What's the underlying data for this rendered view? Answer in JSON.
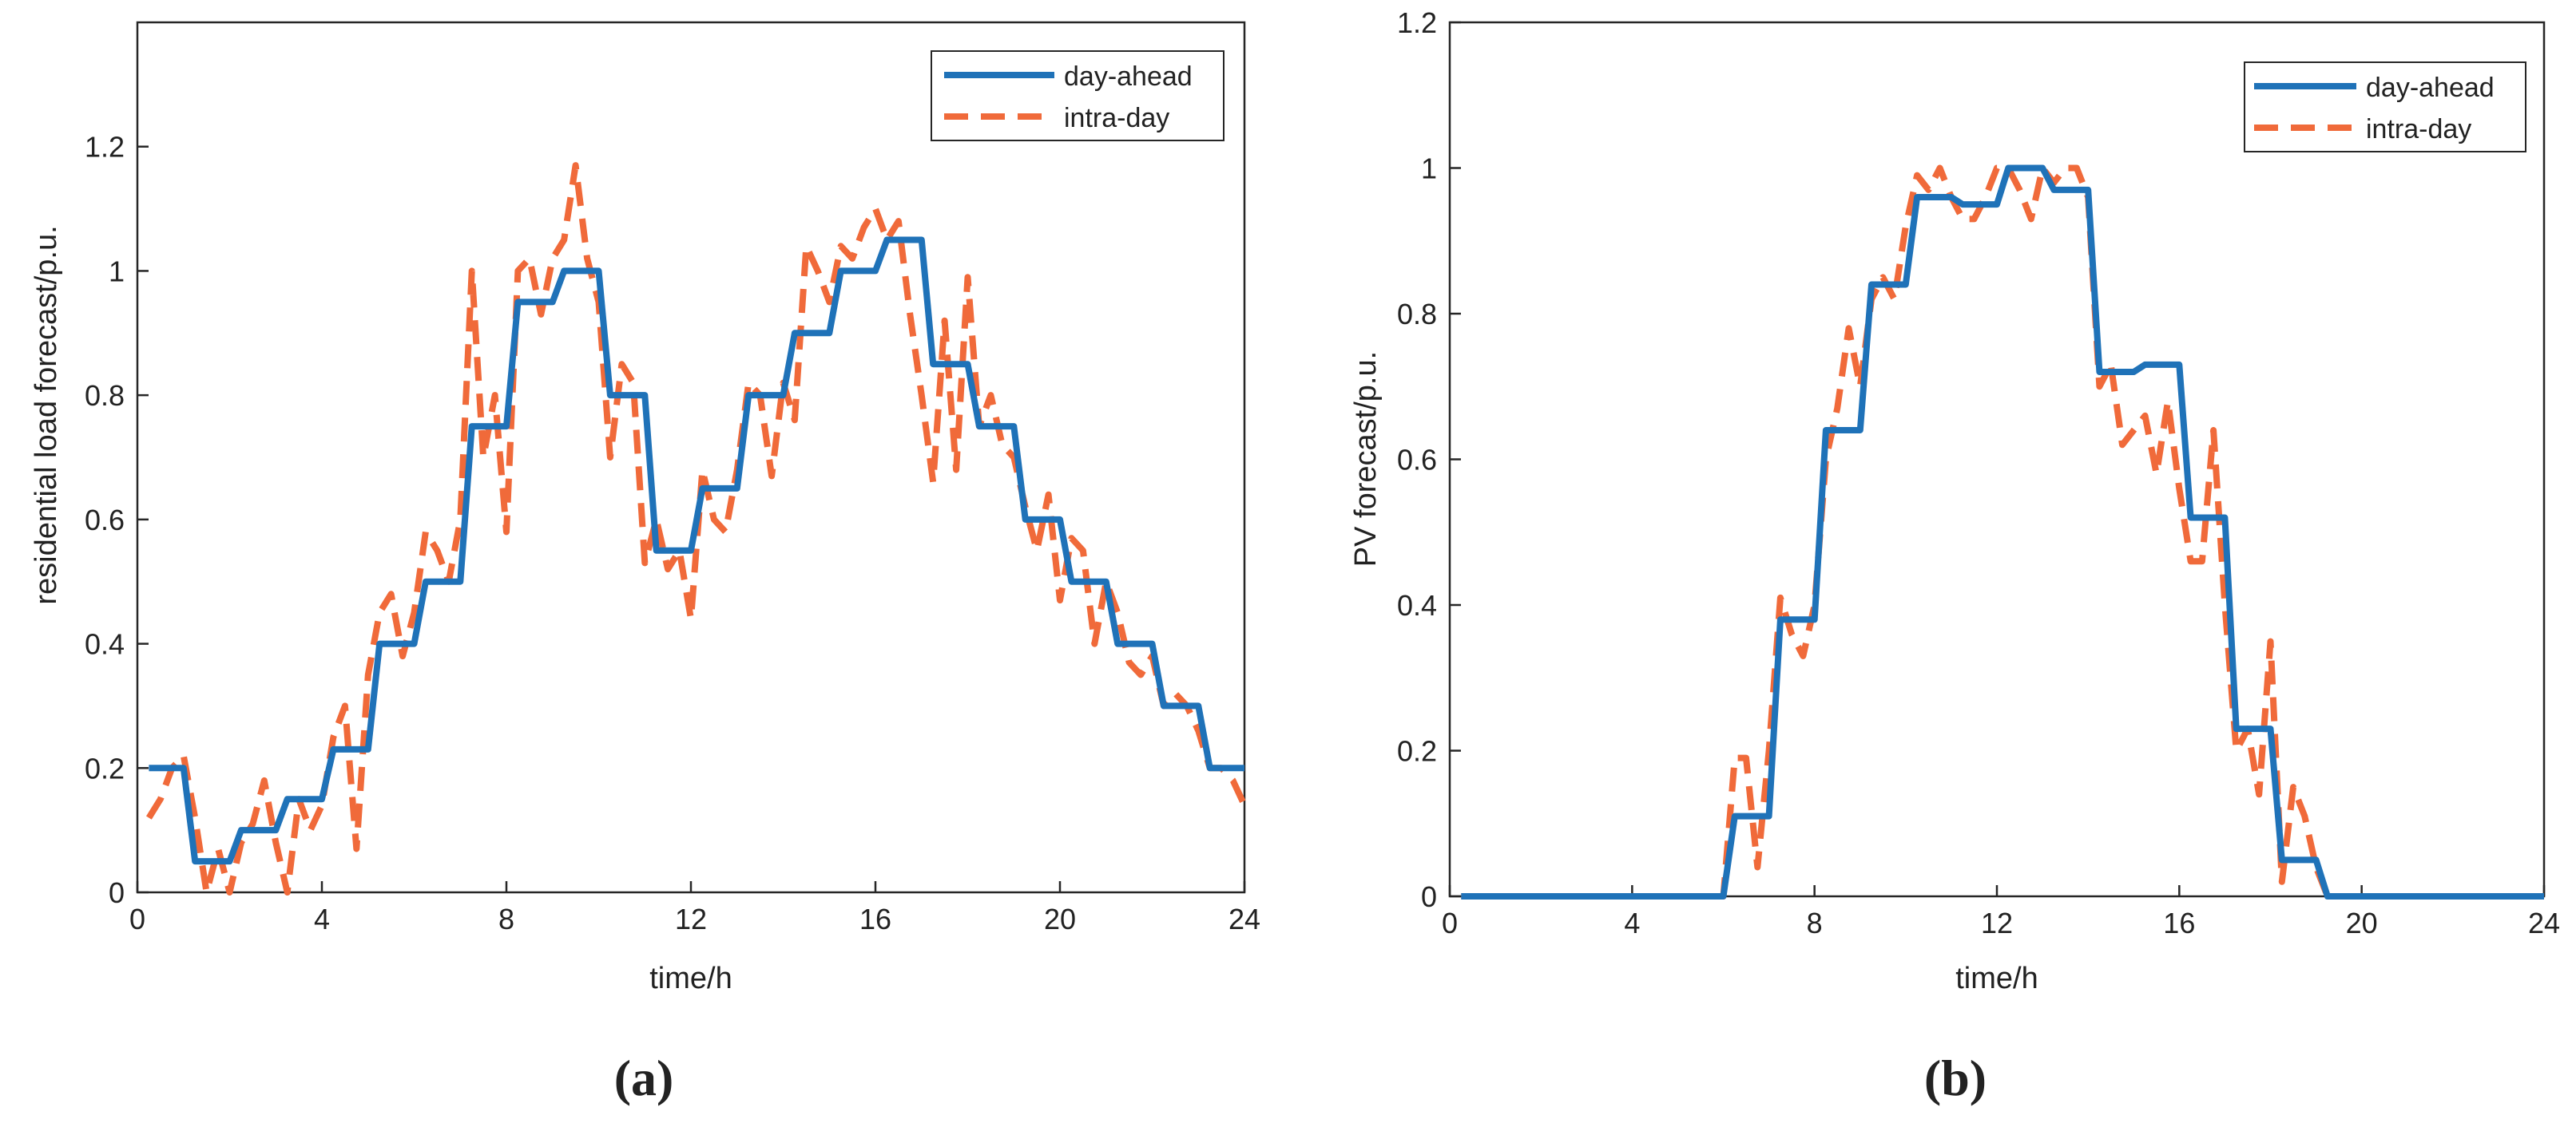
{
  "colors": {
    "day_ahead": "#1f72b8",
    "intra_day": "#f06a3a",
    "axis": "#262626",
    "text": "#222222"
  },
  "chart_data": [
    {
      "type": "line",
      "panel_label": "(a)",
      "xlabel": "time/h",
      "ylabel": "residential load forecast/p.u.",
      "xlim": [
        0,
        24
      ],
      "ylim": [
        0,
        1.4
      ],
      "xticks": [
        0,
        4,
        8,
        12,
        16,
        20,
        24
      ],
      "yticks": [
        0,
        0.2,
        0.4,
        0.6,
        0.8,
        1,
        1.2
      ],
      "ytick_labels": [
        "0",
        "0.2",
        "0.4",
        "0.6",
        "0.8",
        "1",
        "1.2"
      ],
      "grid": false,
      "legend": "top-right",
      "series": [
        {
          "name": "day-ahead",
          "style": "solid",
          "points": [
            [
              0.25,
              0.2
            ],
            [
              1,
              0.2
            ],
            [
              1.25,
              0.05
            ],
            [
              2,
              0.05
            ],
            [
              2.25,
              0.1
            ],
            [
              3,
              0.1
            ],
            [
              3.25,
              0.15
            ],
            [
              4,
              0.15
            ],
            [
              4.25,
              0.23
            ],
            [
              5,
              0.23
            ],
            [
              5.25,
              0.4
            ],
            [
              6,
              0.4
            ],
            [
              6.25,
              0.5
            ],
            [
              7,
              0.5
            ],
            [
              7.25,
              0.75
            ],
            [
              8,
              0.75
            ],
            [
              8.25,
              0.95
            ],
            [
              9,
              0.95
            ],
            [
              9.25,
              1
            ],
            [
              10,
              1
            ],
            [
              10.25,
              0.8
            ],
            [
              11,
              0.8
            ],
            [
              11.25,
              0.55
            ],
            [
              12,
              0.55
            ],
            [
              12.25,
              0.65
            ],
            [
              13,
              0.65
            ],
            [
              13.25,
              0.8
            ],
            [
              14,
              0.8
            ],
            [
              14.25,
              0.9
            ],
            [
              15,
              0.9
            ],
            [
              15.25,
              1
            ],
            [
              16,
              1
            ],
            [
              16.25,
              1.05
            ],
            [
              17,
              1.05
            ],
            [
              17.25,
              0.85
            ],
            [
              18,
              0.85
            ],
            [
              18.25,
              0.75
            ],
            [
              19,
              0.75
            ],
            [
              19.25,
              0.6
            ],
            [
              20,
              0.6
            ],
            [
              20.25,
              0.5
            ],
            [
              21,
              0.5
            ],
            [
              21.25,
              0.4
            ],
            [
              22,
              0.4
            ],
            [
              22.25,
              0.3
            ],
            [
              23,
              0.3
            ],
            [
              23.25,
              0.2
            ],
            [
              24,
              0.2
            ]
          ]
        },
        {
          "name": "intra-day",
          "style": "dashed",
          "points": [
            [
              0.25,
              0.12
            ],
            [
              0.5,
              0.15
            ],
            [
              0.75,
              0.2
            ],
            [
              1,
              0.22
            ],
            [
              1.25,
              0.12
            ],
            [
              1.5,
              0
            ],
            [
              1.75,
              0.07
            ],
            [
              2,
              0
            ],
            [
              2.25,
              0.08
            ],
            [
              2.5,
              0.11
            ],
            [
              2.75,
              0.18
            ],
            [
              3,
              0.08
            ],
            [
              3.25,
              0
            ],
            [
              3.5,
              0.15
            ],
            [
              3.75,
              0.1
            ],
            [
              4,
              0.14
            ],
            [
              4.25,
              0.25
            ],
            [
              4.5,
              0.3
            ],
            [
              4.75,
              0.07
            ],
            [
              5,
              0.35
            ],
            [
              5.25,
              0.45
            ],
            [
              5.5,
              0.48
            ],
            [
              5.75,
              0.38
            ],
            [
              6,
              0.45
            ],
            [
              6.25,
              0.58
            ],
            [
              6.5,
              0.55
            ],
            [
              6.75,
              0.5
            ],
            [
              7,
              0.6
            ],
            [
              7.25,
              1
            ],
            [
              7.5,
              0.7
            ],
            [
              7.75,
              0.8
            ],
            [
              8,
              0.58
            ],
            [
              8.25,
              1
            ],
            [
              8.5,
              1.02
            ],
            [
              8.75,
              0.93
            ],
            [
              9,
              1.02
            ],
            [
              9.25,
              1.05
            ],
            [
              9.5,
              1.17
            ],
            [
              9.75,
              1.02
            ],
            [
              10,
              0.95
            ],
            [
              10.25,
              0.7
            ],
            [
              10.5,
              0.85
            ],
            [
              10.75,
              0.82
            ],
            [
              11,
              0.53
            ],
            [
              11.25,
              0.6
            ],
            [
              11.5,
              0.52
            ],
            [
              11.75,
              0.55
            ],
            [
              12,
              0.44
            ],
            [
              12.25,
              0.68
            ],
            [
              12.5,
              0.6
            ],
            [
              12.75,
              0.58
            ],
            [
              13,
              0.68
            ],
            [
              13.25,
              0.82
            ],
            [
              13.5,
              0.8
            ],
            [
              13.75,
              0.67
            ],
            [
              14,
              0.82
            ],
            [
              14.25,
              0.76
            ],
            [
              14.5,
              1.04
            ],
            [
              14.75,
              1
            ],
            [
              15,
              0.95
            ],
            [
              15.25,
              1.04
            ],
            [
              15.5,
              1.02
            ],
            [
              15.75,
              1.07
            ],
            [
              16,
              1.1
            ],
            [
              16.25,
              1.05
            ],
            [
              16.5,
              1.08
            ],
            [
              16.75,
              0.93
            ],
            [
              17,
              0.8
            ],
            [
              17.25,
              0.66
            ],
            [
              17.5,
              0.92
            ],
            [
              17.75,
              0.68
            ],
            [
              18,
              0.99
            ],
            [
              18.25,
              0.75
            ],
            [
              18.5,
              0.8
            ],
            [
              18.75,
              0.72
            ],
            [
              19,
              0.7
            ],
            [
              19.25,
              0.62
            ],
            [
              19.5,
              0.55
            ],
            [
              19.75,
              0.64
            ],
            [
              20,
              0.47
            ],
            [
              20.25,
              0.57
            ],
            [
              20.5,
              0.55
            ],
            [
              20.75,
              0.4
            ],
            [
              21,
              0.5
            ],
            [
              21.25,
              0.45
            ],
            [
              21.5,
              0.37
            ],
            [
              21.75,
              0.35
            ],
            [
              22,
              0.38
            ],
            [
              22.25,
              0.3
            ],
            [
              22.5,
              0.32
            ],
            [
              22.75,
              0.3
            ],
            [
              23,
              0.26
            ],
            [
              23.25,
              0.2
            ],
            [
              23.5,
              0.2
            ],
            [
              23.75,
              0.18
            ],
            [
              24,
              0.14
            ]
          ]
        }
      ]
    },
    {
      "type": "line",
      "panel_label": "(b)",
      "xlabel": "time/h",
      "ylabel": "PV forecast/p.u.",
      "xlim": [
        0,
        24
      ],
      "ylim": [
        0,
        1.2
      ],
      "xticks": [
        0,
        4,
        8,
        12,
        16,
        20,
        24
      ],
      "yticks": [
        0,
        0.2,
        0.4,
        0.6,
        0.8,
        1,
        1.2
      ],
      "ytick_labels": [
        "0",
        "0.2",
        "0.4",
        "0.6",
        "0.8",
        "1",
        "1.2"
      ],
      "grid": false,
      "legend": "top-right",
      "series": [
        {
          "name": "day-ahead",
          "style": "solid",
          "points": [
            [
              0.25,
              0
            ],
            [
              6,
              0
            ],
            [
              6.25,
              0.11
            ],
            [
              7,
              0.11
            ],
            [
              7.25,
              0.38
            ],
            [
              8,
              0.38
            ],
            [
              8.25,
              0.64
            ],
            [
              9,
              0.64
            ],
            [
              9.25,
              0.84
            ],
            [
              10,
              0.84
            ],
            [
              10.25,
              0.96
            ],
            [
              11,
              0.96
            ],
            [
              11.25,
              0.95
            ],
            [
              12,
              0.95
            ],
            [
              12.25,
              1
            ],
            [
              13,
              1
            ],
            [
              13.25,
              0.97
            ],
            [
              14,
              0.97
            ],
            [
              14.25,
              0.72
            ],
            [
              15,
              0.72
            ],
            [
              15.25,
              0.73
            ],
            [
              16,
              0.73
            ],
            [
              16.25,
              0.52
            ],
            [
              17,
              0.52
            ],
            [
              17.25,
              0.23
            ],
            [
              18,
              0.23
            ],
            [
              18.25,
              0.05
            ],
            [
              19,
              0.05
            ],
            [
              19.25,
              0
            ],
            [
              24,
              0
            ]
          ]
        },
        {
          "name": "intra-day",
          "style": "dashed",
          "points": [
            [
              0.25,
              0
            ],
            [
              6,
              0
            ],
            [
              6.25,
              0.19
            ],
            [
              6.5,
              0.19
            ],
            [
              6.75,
              0.04
            ],
            [
              7,
              0.2
            ],
            [
              7.25,
              0.41
            ],
            [
              7.5,
              0.36
            ],
            [
              7.75,
              0.33
            ],
            [
              8,
              0.4
            ],
            [
              8.25,
              0.6
            ],
            [
              8.5,
              0.67
            ],
            [
              8.75,
              0.78
            ],
            [
              9,
              0.7
            ],
            [
              9.25,
              0.82
            ],
            [
              9.5,
              0.85
            ],
            [
              9.75,
              0.82
            ],
            [
              10,
              0.92
            ],
            [
              10.25,
              0.99
            ],
            [
              10.5,
              0.97
            ],
            [
              10.75,
              1
            ],
            [
              11,
              0.96
            ],
            [
              11.25,
              0.93
            ],
            [
              11.5,
              0.93
            ],
            [
              11.75,
              0.96
            ],
            [
              12,
              1
            ],
            [
              12.25,
              1
            ],
            [
              12.5,
              0.97
            ],
            [
              12.75,
              0.93
            ],
            [
              13,
              1
            ],
            [
              13.25,
              0.98
            ],
            [
              13.5,
              1
            ],
            [
              13.75,
              1
            ],
            [
              14,
              0.96
            ],
            [
              14.25,
              0.7
            ],
            [
              14.5,
              0.73
            ],
            [
              14.75,
              0.62
            ],
            [
              15,
              0.64
            ],
            [
              15.25,
              0.66
            ],
            [
              15.5,
              0.58
            ],
            [
              15.75,
              0.68
            ],
            [
              16,
              0.56
            ],
            [
              16.25,
              0.46
            ],
            [
              16.5,
              0.46
            ],
            [
              16.75,
              0.64
            ],
            [
              17,
              0.4
            ],
            [
              17.25,
              0.2
            ],
            [
              17.5,
              0.23
            ],
            [
              17.75,
              0.14
            ],
            [
              18,
              0.35
            ],
            [
              18.25,
              0.02
            ],
            [
              18.5,
              0.15
            ],
            [
              18.75,
              0.11
            ],
            [
              19,
              0.04
            ],
            [
              19.25,
              0
            ],
            [
              24,
              0
            ]
          ]
        }
      ]
    }
  ]
}
